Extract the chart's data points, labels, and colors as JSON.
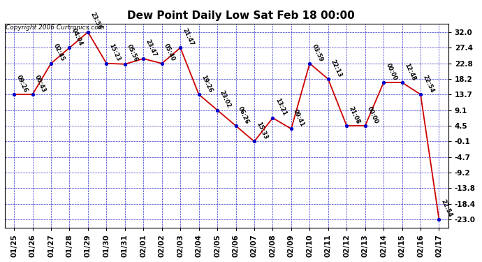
{
  "title": "Dew Point Daily Low Sat Feb 18 00:00",
  "copyright": "Copyright 2006 Curtronics.com",
  "dates": [
    "01/25",
    "01/26",
    "01/27",
    "01/28",
    "01/29",
    "01/30",
    "01/31",
    "02/01",
    "02/02",
    "02/03",
    "02/04",
    "02/05",
    "02/06",
    "02/07",
    "02/08",
    "02/09",
    "02/10",
    "02/11",
    "02/12",
    "02/13",
    "02/14",
    "02/15",
    "02/16",
    "02/17"
  ],
  "values": [
    13.7,
    13.7,
    22.8,
    27.4,
    32.0,
    22.8,
    22.6,
    24.2,
    22.8,
    27.4,
    13.7,
    9.1,
    4.5,
    -0.1,
    6.8,
    3.6,
    22.8,
    18.2,
    4.5,
    4.5,
    17.2,
    17.2,
    13.7,
    -23.0
  ],
  "labels": [
    "09:26",
    "00:43",
    "02:45",
    "04:04",
    "23:56",
    "15:23",
    "05:56",
    "23:47",
    "05:40",
    "21:47",
    "19:26",
    "23:02",
    "06:26",
    "15:33",
    "13:21",
    "09:41",
    "03:59",
    "22:13",
    "21:08",
    "00:00",
    "00:00",
    "12:48",
    "22:54",
    "22:54"
  ],
  "yticks": [
    32.0,
    27.4,
    22.8,
    18.2,
    13.7,
    9.1,
    4.5,
    -0.1,
    -4.7,
    -9.2,
    -13.8,
    -18.4,
    -23.0
  ],
  "ymin": -25.5,
  "ymax": 34.5,
  "line_color": "#cc0000",
  "marker_color": "#0000cc",
  "bg_color": "#ffffff",
  "grid_color": "#0000bb",
  "title_fontsize": 11,
  "label_fontsize": 6.0,
  "tick_fontsize": 7.5,
  "copyright_fontsize": 6.5
}
